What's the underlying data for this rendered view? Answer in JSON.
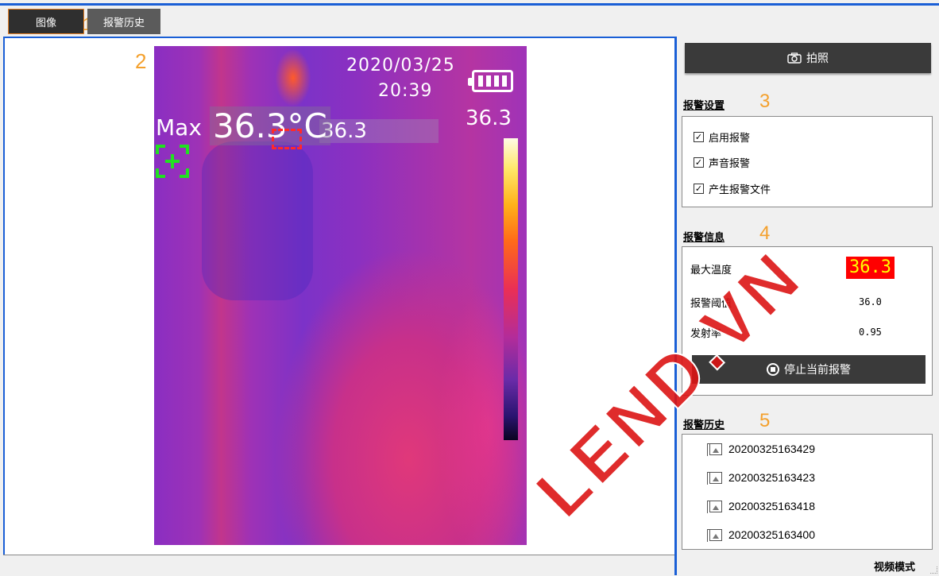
{
  "tabs": [
    {
      "label": "图像",
      "active": true
    },
    {
      "label": "报警历史",
      "active": false
    }
  ],
  "markers": {
    "tabs": "1",
    "image": "2",
    "alarm_settings": "3",
    "alarm_info": "4",
    "alarm_history": "5"
  },
  "image": {
    "date": "2020/03/25",
    "time": "20:39",
    "max_label": "Max",
    "max_value": "36.3°C",
    "spot_value": "36.3",
    "scale_max": "36.3"
  },
  "sidebar": {
    "photo_button": "拍照",
    "alarm_settings": {
      "title": "报警设置",
      "options": [
        {
          "label": "启用报警",
          "checked": true
        },
        {
          "label": "声音报警",
          "checked": true
        },
        {
          "label": "产生报警文件",
          "checked": true
        }
      ]
    },
    "alarm_info": {
      "title": "报警信息",
      "max_temp_label": "最大温度",
      "max_temp_value": "36.3",
      "threshold_label": "报警阈值",
      "threshold_value": "36.0",
      "emissivity_label": "发射率",
      "emissivity_value": "0.95",
      "stop_button": "停止当前报警"
    },
    "alarm_history": {
      "title": "报警历史",
      "items": [
        "20200325163429",
        "20200325163423",
        "20200325163418",
        "20200325163400"
      ]
    }
  },
  "status": {
    "mode": "视频模式"
  },
  "watermark": "LEND.VN"
}
